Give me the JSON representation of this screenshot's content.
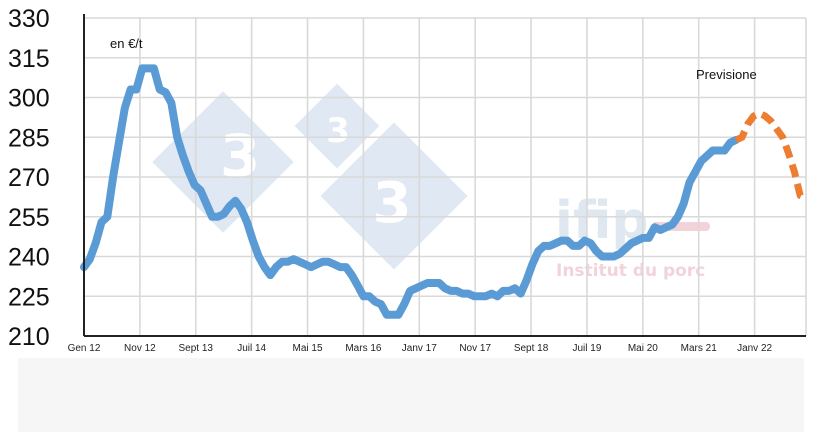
{
  "chart_data": {
    "type": "line",
    "title": "",
    "xlabel": "",
    "ylabel": "",
    "unit_annotation": "en €/t",
    "forecast_annotation": "Previsione",
    "watermark": {
      "number": "3",
      "brand": "ifip",
      "brand_sub": "Institut du porc"
    },
    "x_ticks": [
      "Gen 12",
      "Nov 12",
      "Sept 13",
      "Juil 14",
      "Mai 15",
      "Mars 16",
      "Janv 17",
      "Nov 17",
      "Sept 18",
      "Juil 19",
      "Mai 20",
      "Mars 21",
      "Janv 22"
    ],
    "y_ticks": [
      210,
      225,
      240,
      255,
      270,
      285,
      300,
      315,
      330
    ],
    "ylim": [
      210,
      330
    ],
    "xlim_months": [
      0,
      124
    ],
    "grid": true,
    "colors": {
      "actual": "#5b9bd5",
      "forecast": "#ed7d31",
      "grid": "#d9d9d9",
      "axis": "#222222"
    },
    "series": [
      {
        "style": "solid",
        "points": [
          [
            0,
            236
          ],
          [
            1,
            239
          ],
          [
            2,
            245
          ],
          [
            3,
            253
          ],
          [
            4,
            255
          ],
          [
            5,
            270
          ],
          [
            6,
            283
          ],
          [
            7,
            296
          ],
          [
            8,
            303
          ],
          [
            9,
            303
          ],
          [
            10,
            311
          ],
          [
            11,
            311
          ],
          [
            12,
            311
          ],
          [
            13,
            303
          ],
          [
            14,
            302
          ],
          [
            15,
            298
          ],
          [
            16,
            285
          ],
          [
            17,
            278
          ],
          [
            18,
            272
          ],
          [
            19,
            267
          ],
          [
            20,
            265
          ],
          [
            21,
            260
          ],
          [
            22,
            255
          ],
          [
            23,
            255
          ],
          [
            24,
            256
          ],
          [
            25,
            259
          ],
          [
            26,
            261
          ],
          [
            27,
            258
          ],
          [
            28,
            253
          ],
          [
            29,
            246
          ],
          [
            30,
            240
          ],
          [
            31,
            236
          ],
          [
            32,
            233
          ],
          [
            33,
            236
          ],
          [
            34,
            238
          ],
          [
            35,
            238
          ],
          [
            36,
            239
          ],
          [
            37,
            238
          ],
          [
            38,
            237
          ],
          [
            39,
            236
          ],
          [
            40,
            237
          ],
          [
            41,
            238
          ],
          [
            42,
            238
          ],
          [
            43,
            237
          ],
          [
            44,
            236
          ],
          [
            45,
            236
          ],
          [
            46,
            233
          ],
          [
            47,
            229
          ],
          [
            48,
            225
          ],
          [
            49,
            225
          ],
          [
            50,
            223
          ],
          [
            51,
            222
          ],
          [
            52,
            218
          ],
          [
            53,
            218
          ],
          [
            54,
            218
          ],
          [
            55,
            222
          ],
          [
            56,
            227
          ],
          [
            57,
            228
          ],
          [
            58,
            229
          ],
          [
            59,
            230
          ],
          [
            60,
            230
          ],
          [
            61,
            230
          ],
          [
            62,
            228
          ],
          [
            63,
            227
          ],
          [
            64,
            227
          ],
          [
            65,
            226
          ],
          [
            66,
            226
          ],
          [
            67,
            225
          ],
          [
            68,
            225
          ],
          [
            69,
            225
          ],
          [
            70,
            226
          ],
          [
            71,
            225
          ],
          [
            72,
            227
          ],
          [
            73,
            227
          ],
          [
            74,
            228
          ],
          [
            75,
            226
          ],
          [
            76,
            231
          ],
          [
            77,
            237
          ],
          [
            78,
            242
          ],
          [
            79,
            244
          ],
          [
            80,
            244
          ],
          [
            81,
            245
          ],
          [
            82,
            246
          ],
          [
            83,
            246
          ],
          [
            84,
            244
          ],
          [
            85,
            244
          ],
          [
            86,
            246
          ],
          [
            87,
            245
          ],
          [
            88,
            242
          ],
          [
            89,
            240
          ],
          [
            90,
            240
          ],
          [
            91,
            240
          ],
          [
            92,
            241
          ],
          [
            93,
            243
          ],
          [
            94,
            245
          ],
          [
            95,
            246
          ],
          [
            96,
            247
          ],
          [
            97,
            247
          ],
          [
            98,
            251
          ],
          [
            99,
            250
          ],
          [
            100,
            251
          ],
          [
            101,
            252
          ],
          [
            102,
            255
          ],
          [
            103,
            260
          ],
          [
            104,
            268
          ],
          [
            105,
            272
          ],
          [
            106,
            276
          ],
          [
            107,
            278
          ],
          [
            108,
            280
          ],
          [
            109,
            280
          ],
          [
            110,
            280
          ],
          [
            111,
            283
          ],
          [
            112,
            284
          ]
        ]
      },
      {
        "style": "dashed",
        "points": [
          [
            112,
            284
          ],
          [
            113,
            285
          ],
          [
            114,
            290
          ],
          [
            115,
            293
          ],
          [
            116,
            294
          ],
          [
            117,
            293
          ],
          [
            118,
            291
          ],
          [
            119,
            288
          ],
          [
            120,
            285
          ],
          [
            121,
            279
          ],
          [
            122,
            272
          ],
          [
            123,
            263
          ],
          [
            124,
            262
          ]
        ]
      }
    ]
  }
}
